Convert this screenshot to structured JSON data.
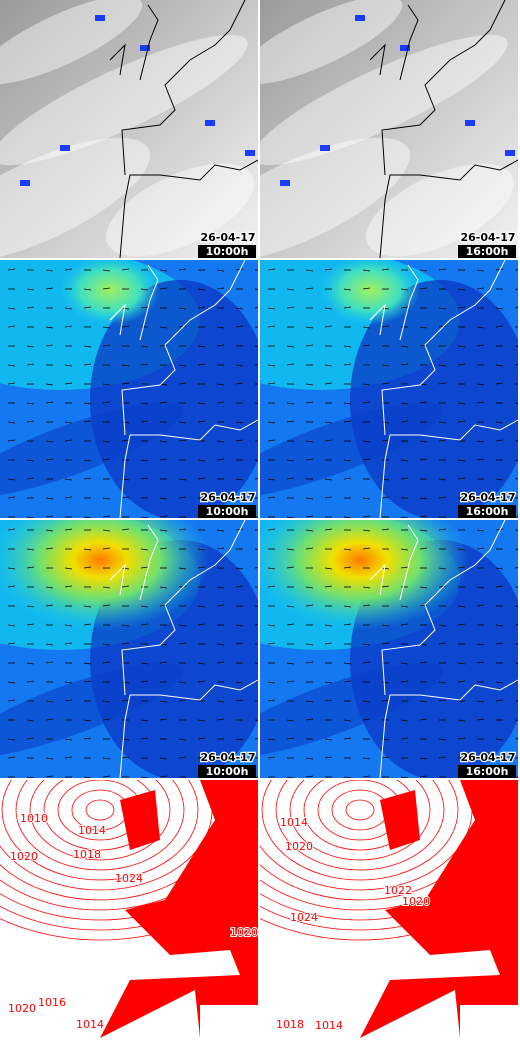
{
  "rows": [
    {
      "panels": [
        {
          "date": "26-04-17",
          "time": "10:00h"
        },
        {
          "date": "26-04-17",
          "time": "16:00h"
        }
      ]
    },
    {
      "panels": [
        {
          "date": "26-04-17",
          "time": "10:00h"
        },
        {
          "date": "26-04-17",
          "time": "16:00h"
        }
      ]
    },
    {
      "panels": [
        {
          "date": "26-04-17",
          "time": "10:00h"
        },
        {
          "date": "26-04-17",
          "time": "16:00h"
        }
      ]
    },
    {
      "panels": [
        {
          "isobars": [
            "1010",
            "1014",
            "1018",
            "1020",
            "1024",
            "1020",
            "1016",
            "1020",
            "1014"
          ]
        },
        {
          "isobars": [
            "1014",
            "1020",
            "1022",
            "1024",
            "1020",
            "1018",
            "1014"
          ]
        }
      ]
    }
  ]
}
